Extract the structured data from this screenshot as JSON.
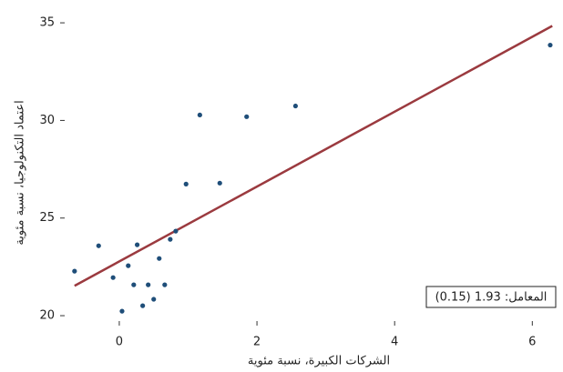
{
  "chart_data": {
    "type": "scatter",
    "x_label": "الشركات الكبيرة، نسبة مئوية",
    "y_label": "اعتماد التكنولوجيا، نسبة مئوية",
    "annotation": "المعامل: 1.93 (0.15)",
    "xlim": [
      -0.78,
      6.34
    ],
    "ylim": [
      19.77,
      35.47
    ],
    "xticks": [
      0,
      2,
      4,
      6
    ],
    "yticks": [
      20,
      25,
      30,
      35
    ],
    "points": {
      "color": "#1f4e79",
      "x": [
        -0.65,
        -0.3,
        -0.09,
        0.04,
        0.13,
        0.21,
        0.26,
        0.34,
        0.42,
        0.5,
        0.58,
        0.66,
        0.74,
        0.82,
        0.97,
        1.17,
        1.46,
        1.85,
        2.56,
        6.26
      ],
      "y": [
        22.28,
        23.58,
        21.95,
        20.23,
        22.56,
        21.58,
        23.63,
        20.51,
        21.58,
        20.84,
        22.93,
        21.58,
        23.91,
        24.33,
        26.74,
        30.28,
        26.79,
        30.19,
        30.74,
        33.86
      ]
    },
    "fit": {
      "color": "#9b3a3f",
      "x": [
        -0.65,
        6.29
      ],
      "y": [
        21.53,
        34.84
      ]
    }
  }
}
